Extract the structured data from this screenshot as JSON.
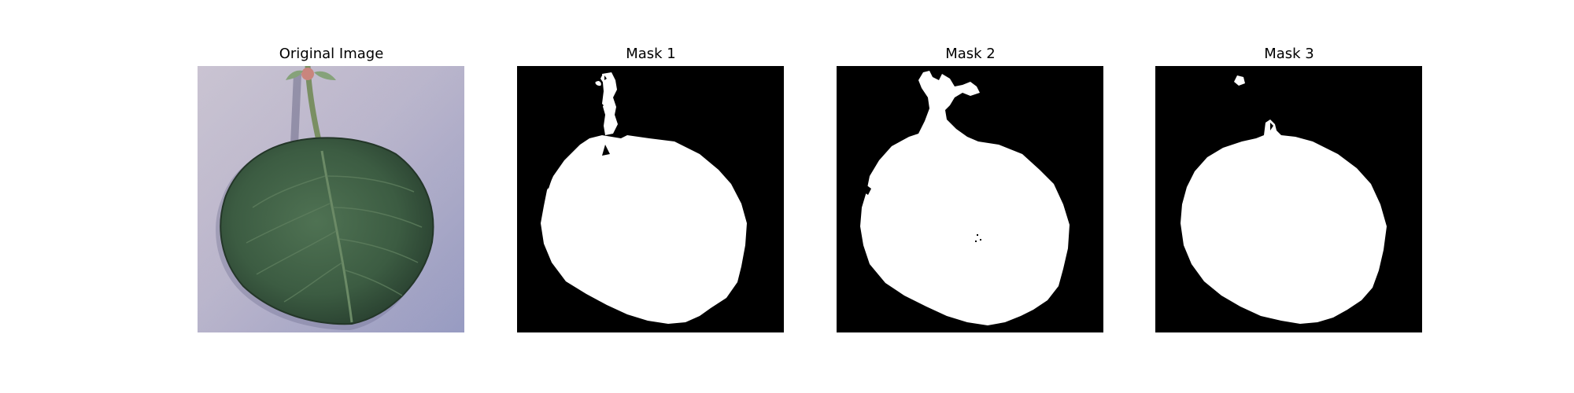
{
  "figure": {
    "panels": [
      {
        "title": "Original Image"
      },
      {
        "title": "Mask 1"
      },
      {
        "title": "Mask 2"
      },
      {
        "title": "Mask 3"
      }
    ]
  },
  "colors": {
    "mask_background": "#000000",
    "mask_foreground": "#ffffff",
    "photo_background": "#b3afc9",
    "leaf": "#3f5f44"
  }
}
